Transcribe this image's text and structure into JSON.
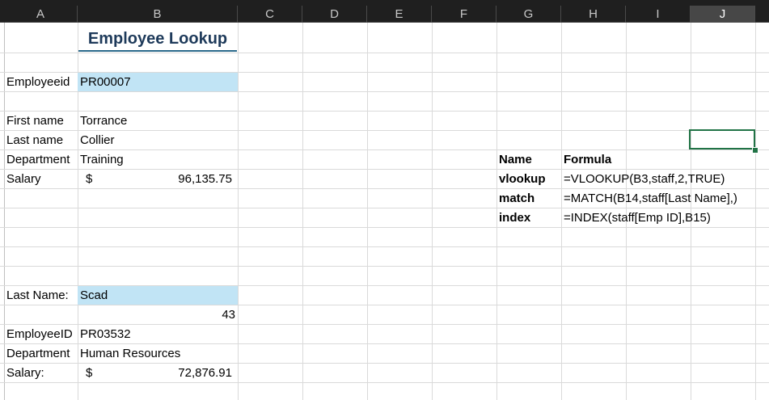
{
  "columns": [
    "A",
    "B",
    "C",
    "D",
    "E",
    "F",
    "G",
    "H",
    "I",
    "J"
  ],
  "selected_column": "J",
  "title": "Employee Lookup",
  "lookup1": {
    "label": "Employeeid",
    "value": "PR00007",
    "first_label": "First name",
    "first_value": "Torrance",
    "last_label": "Last name",
    "last_value": "Collier",
    "dept_label": "Department",
    "dept_value": "Training",
    "salary_label": "Salary",
    "salary_currency": "$",
    "salary_value": "96,135.75"
  },
  "lookup2": {
    "label": "Last Name:",
    "value": "Scad",
    "match_value": "43",
    "id_label": "EmployeeID",
    "id_value": "PR03532",
    "dept_label": "Department",
    "dept_value": "Human Resources",
    "salary_label": "Salary:",
    "salary_currency": "$",
    "salary_value": "72,876.91"
  },
  "formulas": {
    "header_name": "Name",
    "header_formula": "Formula",
    "rows": [
      {
        "name": "vlookup",
        "formula": "=VLOOKUP(B3,staff,2,TRUE)"
      },
      {
        "name": "match",
        "formula": "=MATCH(B14,staff[Last Name],)"
      },
      {
        "name": "index",
        "formula": "=INDEX(staff[Emp ID],B15)"
      }
    ]
  }
}
